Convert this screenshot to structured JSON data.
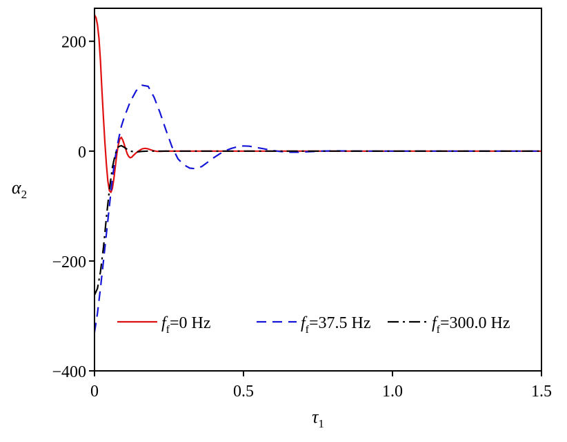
{
  "chart_data": {
    "type": "line",
    "xlabel": "τ",
    "xlabel_sub": "1",
    "ylabel": "α",
    "ylabel_sub": "2",
    "xlim": [
      0,
      1.5
    ],
    "ylim": [
      -400,
      260
    ],
    "xticks": [
      {
        "value": 0,
        "label": "0"
      },
      {
        "value": 0.5,
        "label": "0.5"
      },
      {
        "value": 1.0,
        "label": "1.0"
      },
      {
        "value": 1.5,
        "label": "1.5"
      }
    ],
    "yticks": [
      {
        "value": -400,
        "label": "−400"
      },
      {
        "value": -200,
        "label": "−200"
      },
      {
        "value": 0,
        "label": "0"
      },
      {
        "value": 200,
        "label": "200"
      }
    ],
    "grid": false,
    "legend": "bottom",
    "series": [
      {
        "name": "=0 Hz",
        "name_prefix": "f",
        "name_sub": "f",
        "color": "#e01010",
        "dash": "solid",
        "x": [
          0,
          0.005,
          0.01,
          0.015,
          0.02,
          0.025,
          0.03,
          0.035,
          0.04,
          0.045,
          0.05,
          0.055,
          0.06,
          0.065,
          0.07,
          0.075,
          0.08,
          0.085,
          0.09,
          0.095,
          0.1,
          0.105,
          0.11,
          0.115,
          0.12,
          0.125,
          0.13,
          0.14,
          0.15,
          0.16,
          0.17,
          0.18,
          0.19,
          0.2,
          0.21,
          0.22,
          0.24,
          0.26,
          0.3,
          0.4,
          0.6,
          0.8,
          1.0,
          1.2,
          1.5
        ],
        "values": [
          248,
          243,
          230,
          205,
          165,
          110,
          60,
          15,
          -25,
          -55,
          -72,
          -75,
          -68,
          -50,
          -28,
          -5,
          12,
          22,
          25,
          20,
          12,
          3,
          -5,
          -10,
          -12,
          -11,
          -8,
          -3,
          1,
          4,
          5,
          4,
          2,
          0.5,
          -0.5,
          -0.5,
          0,
          0,
          0,
          0,
          0,
          0,
          0,
          0,
          0
        ]
      },
      {
        "name": "=37.5 Hz",
        "name_prefix": "f",
        "name_sub": "f",
        "color": "#1515d8",
        "dash": "dashed",
        "x": [
          0,
          0.01,
          0.02,
          0.03,
          0.04,
          0.05,
          0.06,
          0.07,
          0.08,
          0.09,
          0.1,
          0.12,
          0.14,
          0.16,
          0.18,
          0.2,
          0.22,
          0.24,
          0.26,
          0.28,
          0.3,
          0.32,
          0.34,
          0.36,
          0.38,
          0.4,
          0.42,
          0.44,
          0.46,
          0.48,
          0.5,
          0.52,
          0.54,
          0.56,
          0.58,
          0.6,
          0.62,
          0.64,
          0.66,
          0.68,
          0.7,
          0.72,
          0.74,
          0.76,
          0.78,
          0.8,
          0.85,
          0.9,
          0.95,
          1.0,
          1.2,
          1.5
        ],
        "values": [
          -330,
          -295,
          -250,
          -200,
          -150,
          -100,
          -50,
          -10,
          20,
          45,
          62,
          90,
          110,
          120,
          118,
          98,
          70,
          38,
          8,
          -14,
          -25,
          -31,
          -32,
          -28,
          -20,
          -12,
          -5,
          1,
          5,
          8,
          9.5,
          9,
          7,
          5,
          3,
          1,
          -0.5,
          -1.5,
          -2,
          -2,
          -1.5,
          -1,
          -0.5,
          0,
          0.3,
          0.5,
          0.3,
          0,
          0,
          0,
          0,
          0
        ]
      },
      {
        "name": "=300.0 Hz",
        "name_prefix": "f",
        "name_sub": "f",
        "color": "#000000",
        "dash": "dashdot",
        "x": [
          0,
          0.01,
          0.02,
          0.03,
          0.04,
          0.05,
          0.06,
          0.07,
          0.08,
          0.09,
          0.1,
          0.11,
          0.12,
          0.13,
          0.14,
          0.15,
          0.16,
          0.18,
          0.2,
          0.3,
          0.5,
          1.0,
          1.5
        ],
        "values": [
          -262,
          -250,
          -220,
          -175,
          -120,
          -70,
          -30,
          -5,
          8,
          10,
          7,
          3,
          0,
          -1,
          -1.5,
          -1,
          -0.5,
          0,
          0,
          0,
          0,
          0,
          0
        ]
      }
    ]
  }
}
